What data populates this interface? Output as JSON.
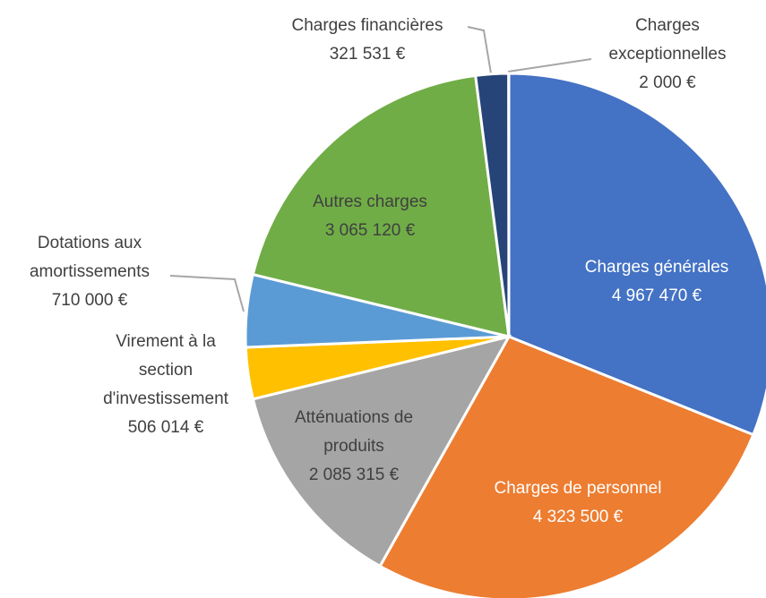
{
  "chart_data": {
    "type": "pie",
    "categories": [
      "Charges générales",
      "Charges de personnel",
      "Atténuations de produits",
      "Virement à la section d'investissement",
      "Dotations aux amortissements",
      "Autres charges",
      "Charges financières",
      "Charges exceptionnelles"
    ],
    "values": [
      4967470,
      4323500,
      2085315,
      506014,
      710000,
      3065120,
      321531,
      2000
    ],
    "value_labels": [
      "4 967 470 €",
      "4 323 500 €",
      "2 085 315 €",
      "506 014 €",
      "710 000 €",
      "3 065 120 €",
      "321 531 €",
      "2 000 €"
    ],
    "colors": [
      "#4472c4",
      "#ed7d31",
      "#a5a5a5",
      "#ffc000",
      "#5b9bd5",
      "#70ad47",
      "#264478",
      "#9e480e"
    ]
  }
}
